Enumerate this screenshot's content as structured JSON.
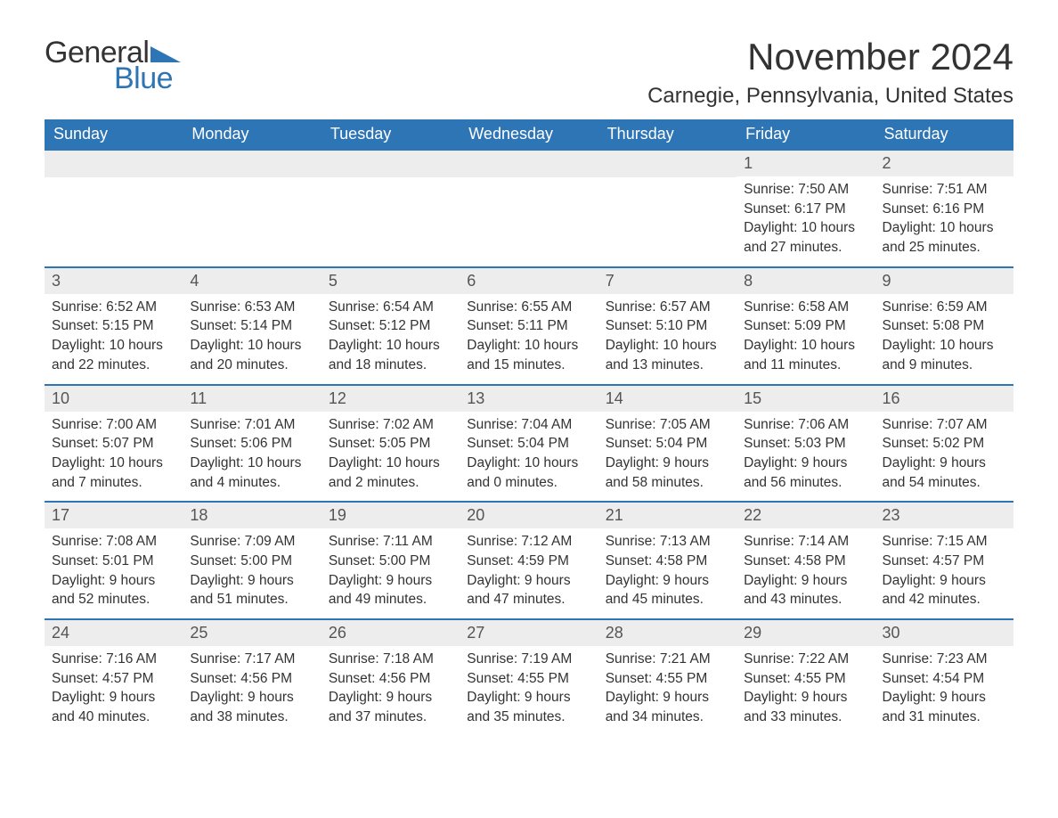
{
  "logo": {
    "text1": "General",
    "text2": "Blue",
    "triangle_color": "#2e75b6"
  },
  "title": "November 2024",
  "location": "Carnegie, Pennsylvania, United States",
  "colors": {
    "header_bg": "#2e75b6",
    "header_text": "#ffffff",
    "daynum_bg": "#ededed",
    "cell_border": "#2e75b6",
    "body_bg": "#ffffff",
    "text": "#333333"
  },
  "day_headers": [
    "Sunday",
    "Monday",
    "Tuesday",
    "Wednesday",
    "Thursday",
    "Friday",
    "Saturday"
  ],
  "weeks": [
    [
      {
        "empty": true
      },
      {
        "empty": true
      },
      {
        "empty": true
      },
      {
        "empty": true
      },
      {
        "empty": true
      },
      {
        "num": "1",
        "sunrise": "Sunrise: 7:50 AM",
        "sunset": "Sunset: 6:17 PM",
        "day1": "Daylight: 10 hours",
        "day2": "and 27 minutes."
      },
      {
        "num": "2",
        "sunrise": "Sunrise: 7:51 AM",
        "sunset": "Sunset: 6:16 PM",
        "day1": "Daylight: 10 hours",
        "day2": "and 25 minutes."
      }
    ],
    [
      {
        "num": "3",
        "sunrise": "Sunrise: 6:52 AM",
        "sunset": "Sunset: 5:15 PM",
        "day1": "Daylight: 10 hours",
        "day2": "and 22 minutes."
      },
      {
        "num": "4",
        "sunrise": "Sunrise: 6:53 AM",
        "sunset": "Sunset: 5:14 PM",
        "day1": "Daylight: 10 hours",
        "day2": "and 20 minutes."
      },
      {
        "num": "5",
        "sunrise": "Sunrise: 6:54 AM",
        "sunset": "Sunset: 5:12 PM",
        "day1": "Daylight: 10 hours",
        "day2": "and 18 minutes."
      },
      {
        "num": "6",
        "sunrise": "Sunrise: 6:55 AM",
        "sunset": "Sunset: 5:11 PM",
        "day1": "Daylight: 10 hours",
        "day2": "and 15 minutes."
      },
      {
        "num": "7",
        "sunrise": "Sunrise: 6:57 AM",
        "sunset": "Sunset: 5:10 PM",
        "day1": "Daylight: 10 hours",
        "day2": "and 13 minutes."
      },
      {
        "num": "8",
        "sunrise": "Sunrise: 6:58 AM",
        "sunset": "Sunset: 5:09 PM",
        "day1": "Daylight: 10 hours",
        "day2": "and 11 minutes."
      },
      {
        "num": "9",
        "sunrise": "Sunrise: 6:59 AM",
        "sunset": "Sunset: 5:08 PM",
        "day1": "Daylight: 10 hours",
        "day2": "and 9 minutes."
      }
    ],
    [
      {
        "num": "10",
        "sunrise": "Sunrise: 7:00 AM",
        "sunset": "Sunset: 5:07 PM",
        "day1": "Daylight: 10 hours",
        "day2": "and 7 minutes."
      },
      {
        "num": "11",
        "sunrise": "Sunrise: 7:01 AM",
        "sunset": "Sunset: 5:06 PM",
        "day1": "Daylight: 10 hours",
        "day2": "and 4 minutes."
      },
      {
        "num": "12",
        "sunrise": "Sunrise: 7:02 AM",
        "sunset": "Sunset: 5:05 PM",
        "day1": "Daylight: 10 hours",
        "day2": "and 2 minutes."
      },
      {
        "num": "13",
        "sunrise": "Sunrise: 7:04 AM",
        "sunset": "Sunset: 5:04 PM",
        "day1": "Daylight: 10 hours",
        "day2": "and 0 minutes."
      },
      {
        "num": "14",
        "sunrise": "Sunrise: 7:05 AM",
        "sunset": "Sunset: 5:04 PM",
        "day1": "Daylight: 9 hours",
        "day2": "and 58 minutes."
      },
      {
        "num": "15",
        "sunrise": "Sunrise: 7:06 AM",
        "sunset": "Sunset: 5:03 PM",
        "day1": "Daylight: 9 hours",
        "day2": "and 56 minutes."
      },
      {
        "num": "16",
        "sunrise": "Sunrise: 7:07 AM",
        "sunset": "Sunset: 5:02 PM",
        "day1": "Daylight: 9 hours",
        "day2": "and 54 minutes."
      }
    ],
    [
      {
        "num": "17",
        "sunrise": "Sunrise: 7:08 AM",
        "sunset": "Sunset: 5:01 PM",
        "day1": "Daylight: 9 hours",
        "day2": "and 52 minutes."
      },
      {
        "num": "18",
        "sunrise": "Sunrise: 7:09 AM",
        "sunset": "Sunset: 5:00 PM",
        "day1": "Daylight: 9 hours",
        "day2": "and 51 minutes."
      },
      {
        "num": "19",
        "sunrise": "Sunrise: 7:11 AM",
        "sunset": "Sunset: 5:00 PM",
        "day1": "Daylight: 9 hours",
        "day2": "and 49 minutes."
      },
      {
        "num": "20",
        "sunrise": "Sunrise: 7:12 AM",
        "sunset": "Sunset: 4:59 PM",
        "day1": "Daylight: 9 hours",
        "day2": "and 47 minutes."
      },
      {
        "num": "21",
        "sunrise": "Sunrise: 7:13 AM",
        "sunset": "Sunset: 4:58 PM",
        "day1": "Daylight: 9 hours",
        "day2": "and 45 minutes."
      },
      {
        "num": "22",
        "sunrise": "Sunrise: 7:14 AM",
        "sunset": "Sunset: 4:58 PM",
        "day1": "Daylight: 9 hours",
        "day2": "and 43 minutes."
      },
      {
        "num": "23",
        "sunrise": "Sunrise: 7:15 AM",
        "sunset": "Sunset: 4:57 PM",
        "day1": "Daylight: 9 hours",
        "day2": "and 42 minutes."
      }
    ],
    [
      {
        "num": "24",
        "sunrise": "Sunrise: 7:16 AM",
        "sunset": "Sunset: 4:57 PM",
        "day1": "Daylight: 9 hours",
        "day2": "and 40 minutes."
      },
      {
        "num": "25",
        "sunrise": "Sunrise: 7:17 AM",
        "sunset": "Sunset: 4:56 PM",
        "day1": "Daylight: 9 hours",
        "day2": "and 38 minutes."
      },
      {
        "num": "26",
        "sunrise": "Sunrise: 7:18 AM",
        "sunset": "Sunset: 4:56 PM",
        "day1": "Daylight: 9 hours",
        "day2": "and 37 minutes."
      },
      {
        "num": "27",
        "sunrise": "Sunrise: 7:19 AM",
        "sunset": "Sunset: 4:55 PM",
        "day1": "Daylight: 9 hours",
        "day2": "and 35 minutes."
      },
      {
        "num": "28",
        "sunrise": "Sunrise: 7:21 AM",
        "sunset": "Sunset: 4:55 PM",
        "day1": "Daylight: 9 hours",
        "day2": "and 34 minutes."
      },
      {
        "num": "29",
        "sunrise": "Sunrise: 7:22 AM",
        "sunset": "Sunset: 4:55 PM",
        "day1": "Daylight: 9 hours",
        "day2": "and 33 minutes."
      },
      {
        "num": "30",
        "sunrise": "Sunrise: 7:23 AM",
        "sunset": "Sunset: 4:54 PM",
        "day1": "Daylight: 9 hours",
        "day2": "and 31 minutes."
      }
    ]
  ]
}
